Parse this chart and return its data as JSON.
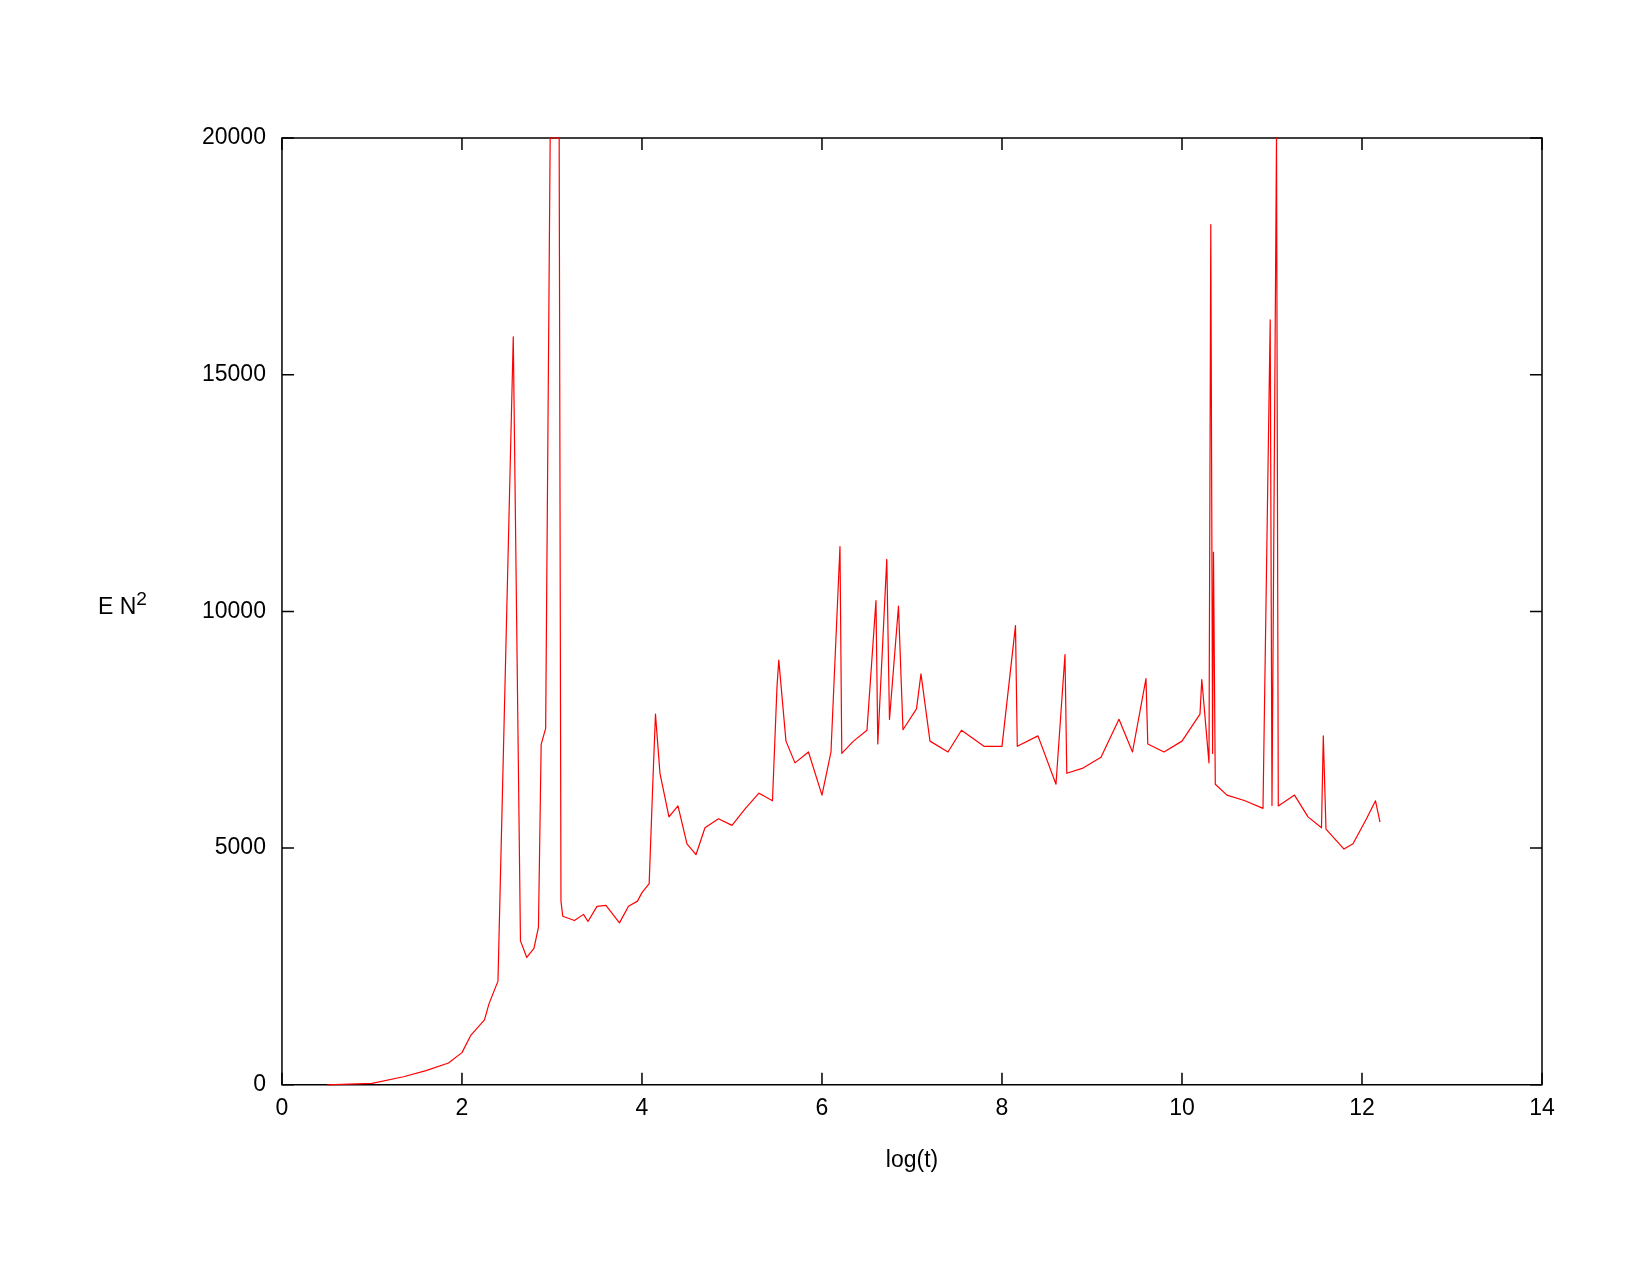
{
  "chart_data": {
    "type": "line",
    "xlabel": "log(t)",
    "ylabel": "E N$^{2}$",
    "xlim": [
      0,
      14
    ],
    "ylim": [
      0,
      20000
    ],
    "xticks": [
      0,
      2,
      4,
      6,
      8,
      10,
      12,
      14
    ],
    "yticks": [
      0,
      5000,
      10000,
      15000,
      20000
    ],
    "grid": false,
    "legend": false,
    "marker": "none",
    "line_style": "solid",
    "series": [
      {
        "color": "#ff0000",
        "x": [
          0.5,
          1.0,
          1.35,
          1.6,
          1.85,
          2.0,
          2.1,
          2.25,
          2.3,
          2.4,
          2.57,
          2.65,
          2.72,
          2.8,
          2.85,
          2.88,
          2.93,
          2.98,
          3.08,
          3.1,
          3.12,
          3.25,
          3.35,
          3.4,
          3.5,
          3.6,
          3.75,
          3.85,
          3.95,
          4.0,
          4.08,
          4.12,
          4.15,
          4.2,
          4.3,
          4.4,
          4.5,
          4.6,
          4.7,
          4.85,
          5.0,
          5.15,
          5.3,
          5.45,
          5.5,
          5.52,
          5.6,
          5.7,
          5.85,
          6.0,
          6.1,
          6.2,
          6.22,
          6.35,
          6.5,
          6.6,
          6.62,
          6.72,
          6.75,
          6.85,
          6.9,
          7.05,
          7.1,
          7.2,
          7.4,
          7.55,
          7.8,
          8.0,
          8.15,
          8.17,
          8.4,
          8.6,
          8.7,
          8.72,
          8.9,
          9.1,
          9.3,
          9.45,
          9.6,
          9.62,
          9.8,
          10.0,
          10.2,
          10.22,
          10.3,
          10.32,
          10.34,
          10.35,
          10.37,
          10.5,
          10.7,
          10.9,
          10.98,
          11.0,
          11.05,
          11.07,
          11.25,
          11.4,
          11.55,
          11.57,
          11.6,
          11.8,
          11.9,
          12.05,
          12.15,
          12.2
        ],
        "values": [
          0,
          30,
          170,
          300,
          460,
          680,
          1050,
          1370,
          1710,
          2190,
          15800,
          3040,
          2690,
          2880,
          3330,
          7190,
          7530,
          20000,
          20000,
          3880,
          3560,
          3470,
          3600,
          3450,
          3770,
          3790,
          3420,
          3770,
          3880,
          4060,
          4250,
          6350,
          7830,
          6580,
          5660,
          5890,
          5090,
          4860,
          5430,
          5620,
          5480,
          5840,
          6160,
          6000,
          8400,
          8970,
          7260,
          6800,
          7030,
          6120,
          7030,
          11370,
          7000,
          7260,
          7490,
          10230,
          7200,
          11100,
          7720,
          10110,
          7500,
          7940,
          8680,
          7260,
          7030,
          7490,
          7150,
          7150,
          9700,
          7150,
          7370,
          6350,
          9090,
          6580,
          6690,
          6920,
          7720,
          7030,
          8580,
          7200,
          7030,
          7260,
          7830,
          8560,
          6800,
          18170,
          7000,
          11250,
          6350,
          6120,
          6000,
          5840,
          16160,
          5900,
          20000,
          5890,
          6120,
          5660,
          5430,
          7370,
          5400,
          4980,
          5090,
          5620,
          6000,
          5550
        ]
      }
    ]
  }
}
